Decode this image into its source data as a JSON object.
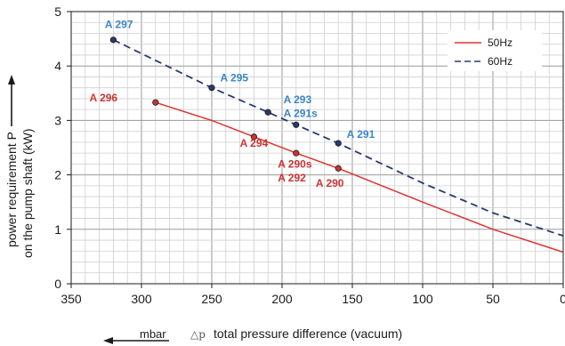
{
  "chart_data": {
    "type": "line",
    "title": "",
    "ylabel_line1": "power requirement P",
    "ylabel_line2": "on the pump shaft (kW)",
    "xlabel_symbol": "△p",
    "xlabel": "total pressure difference (vacuum)",
    "xunit": "mbar",
    "xlim": [
      350,
      0
    ],
    "ylim": [
      0,
      5
    ],
    "x_ticks": [
      350,
      300,
      250,
      200,
      150,
      100,
      50,
      0
    ],
    "y_ticks": [
      0,
      1,
      2,
      3,
      4,
      5
    ],
    "grid": true,
    "legend_position": "top-right",
    "series": [
      {
        "name": "50Hz",
        "color": "#e03232",
        "style": "solid",
        "points": [
          [
            290,
            3.33
          ],
          [
            250,
            3.0
          ],
          [
            220,
            2.7
          ],
          [
            190,
            2.4
          ],
          [
            160,
            2.12
          ],
          [
            100,
            1.5
          ],
          [
            50,
            1.0
          ],
          [
            0,
            0.58
          ]
        ]
      },
      {
        "name": "60Hz",
        "color": "#2a3a6e",
        "style": "dashed",
        "points": [
          [
            320,
            4.48
          ],
          [
            250,
            3.6
          ],
          [
            210,
            3.15
          ],
          [
            190,
            2.92
          ],
          [
            160,
            2.58
          ],
          [
            100,
            1.85
          ],
          [
            50,
            1.3
          ],
          [
            0,
            0.88
          ]
        ]
      }
    ],
    "markers": [
      {
        "x": 290,
        "y": 3.33,
        "color": "#cc3333"
      },
      {
        "x": 220,
        "y": 2.7,
        "color": "#cc3333"
      },
      {
        "x": 190,
        "y": 2.4,
        "color": "#cc3333"
      },
      {
        "x": 160,
        "y": 2.12,
        "color": "#cc3333"
      },
      {
        "x": 320,
        "y": 4.48,
        "color": "#2a3a6e"
      },
      {
        "x": 250,
        "y": 3.6,
        "color": "#2a3a6e"
      },
      {
        "x": 210,
        "y": 3.15,
        "color": "#2a3a6e"
      },
      {
        "x": 190,
        "y": 2.92,
        "color": "#2a3a6e"
      },
      {
        "x": 160,
        "y": 2.58,
        "color": "#2a3a6e"
      }
    ],
    "annotations": [
      {
        "text": "A 297",
        "x": 326,
        "y": 4.7,
        "color": "#3a86c8"
      },
      {
        "text": "A 295",
        "x": 244,
        "y": 3.72,
        "color": "#3a86c8"
      },
      {
        "text": "A 293",
        "x": 199,
        "y": 3.32,
        "color": "#3a86c8"
      },
      {
        "text": "A 291s",
        "x": 199,
        "y": 3.06,
        "color": "#3a86c8"
      },
      {
        "text": "A 291",
        "x": 154,
        "y": 2.68,
        "color": "#3a86c8"
      },
      {
        "text": "A 296",
        "x": 337,
        "y": 3.35,
        "color": "#cc3333"
      },
      {
        "text": "A 294",
        "x": 230,
        "y": 2.52,
        "color": "#cc3333"
      },
      {
        "text": "A 290s",
        "x": 203,
        "y": 2.13,
        "color": "#cc3333"
      },
      {
        "text": "A 292",
        "x": 203,
        "y": 1.88,
        "color": "#cc3333"
      },
      {
        "text": "A 290",
        "x": 176,
        "y": 1.78,
        "color": "#cc3333"
      }
    ]
  }
}
